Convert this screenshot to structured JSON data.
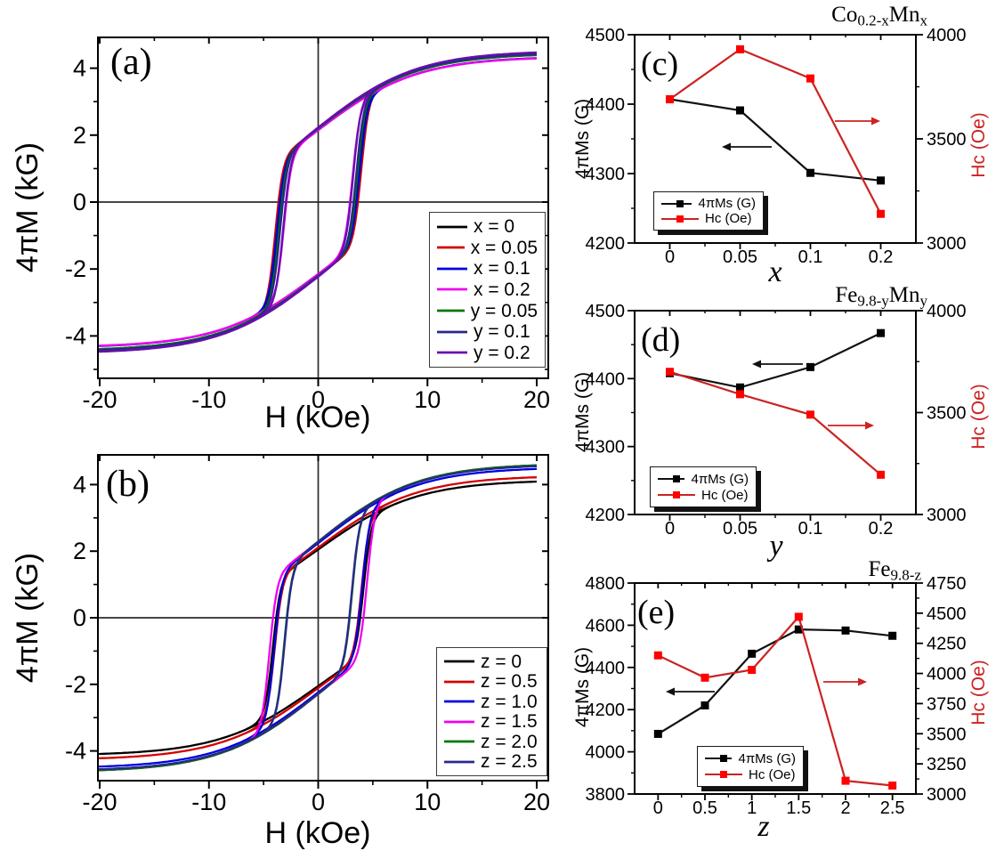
{
  "labels": {
    "a": {
      "letter": "(a)",
      "xlabel": "H (kOe)",
      "ylabel": "4πM (kG)"
    },
    "b": {
      "letter": "(b)",
      "xlabel": "H (kOe)",
      "ylabel": "4πM (kG)"
    },
    "c": {
      "letter": "(c)",
      "xlabel": "x",
      "ylabel_left": "4πMs (G)",
      "ylabel_right": "Hc (Oe)",
      "title": "Co0.2-xMnx",
      "title_segments": [
        {
          "text": "Co"
        },
        {
          "text": "0.2-x",
          "sub": true
        },
        {
          "text": "Mn"
        },
        {
          "text": "x",
          "sub": true
        }
      ]
    },
    "d": {
      "letter": "(d)",
      "xlabel": "y",
      "ylabel_left": "4πMs (G)",
      "ylabel_right": "Hc (Oe)",
      "title": "Fe9.8-yMny",
      "title_segments": [
        {
          "text": "Fe"
        },
        {
          "text": "9.8-y",
          "sub": true
        },
        {
          "text": "Mn"
        },
        {
          "text": "y",
          "sub": true
        }
      ]
    },
    "e": {
      "letter": "(e)",
      "xlabel": "z",
      "ylabel_left": "4πMs (G)",
      "ylabel_right": "Hc (Oe)",
      "title": "Fe9.8-z",
      "title_segments": [
        {
          "text": "Fe"
        },
        {
          "text": "9.8-z",
          "sub": true
        }
      ]
    }
  },
  "colors": {
    "accent_red": "#cc2222",
    "marker_red": "#ff0000",
    "marker_black": "#000000",
    "axis": "#000000",
    "zero_line": "#2b2b2b"
  },
  "chart_data": {
    "panel_a": {
      "type": "line",
      "subtype": "hysteresis_loops",
      "xlabel": "H (kOe)",
      "ylabel": "4πM (kG)",
      "xlim": [
        -20.2,
        21.1
      ],
      "ylim": [
        -5.3,
        4.9
      ],
      "xticks": [
        -20,
        -10,
        0,
        10,
        20
      ],
      "yticks": [
        -4,
        -2,
        0,
        2,
        4
      ],
      "legend_position": "lower right",
      "grid": false,
      "series": [
        {
          "name": "x = 0",
          "color": "#000000",
          "saturation_4piM_kG": 4.41,
          "remanence_4piM_kG": 2.2,
          "coercivity_kOe": 3.69
        },
        {
          "name": "x = 0.05",
          "color": "#d40000",
          "saturation_4piM_kG": 4.39,
          "remanence_4piM_kG": 2.2,
          "coercivity_kOe": 3.93
        },
        {
          "name": "x = 0.1",
          "color": "#0000dd",
          "saturation_4piM_kG": 4.3,
          "remanence_4piM_kG": 2.15,
          "coercivity_kOe": 3.79
        },
        {
          "name": "x = 0.2",
          "color": "#ee00ee",
          "saturation_4piM_kG": 4.29,
          "remanence_4piM_kG": 2.15,
          "coercivity_kOe": 3.14
        },
        {
          "name": "y = 0.05",
          "color": "#007700",
          "saturation_4piM_kG": 4.39,
          "remanence_4piM_kG": 2.2,
          "coercivity_kOe": 3.59
        },
        {
          "name": "y = 0.1",
          "color": "#28288c",
          "saturation_4piM_kG": 4.42,
          "remanence_4piM_kG": 2.21,
          "coercivity_kOe": 3.49
        },
        {
          "name": "y = 0.2",
          "color": "#6a0dad",
          "saturation_4piM_kG": 4.47,
          "remanence_4piM_kG": 2.23,
          "coercivity_kOe": 3.2
        }
      ]
    },
    "panel_b": {
      "type": "line",
      "subtype": "hysteresis_loops",
      "xlabel": "H (kOe)",
      "ylabel": "4πM (kG)",
      "xlim": [
        -20.2,
        21.1
      ],
      "ylim": [
        -4.9,
        4.9
      ],
      "xticks": [
        -20,
        -10,
        0,
        10,
        20
      ],
      "yticks": [
        -4,
        -2,
        0,
        2,
        4
      ],
      "legend_position": "lower right",
      "grid": false,
      "series": [
        {
          "name": "z = 0",
          "color": "#000000",
          "saturation_4piM_kG": 4.09,
          "remanence_4piM_kG": 2.05,
          "coercivity_kOe": 4.15
        },
        {
          "name": "z = 0.5",
          "color": "#d40000",
          "saturation_4piM_kG": 4.22,
          "remanence_4piM_kG": 2.11,
          "coercivity_kOe": 3.97
        },
        {
          "name": "z = 1.0",
          "color": "#0000dd",
          "saturation_4piM_kG": 4.47,
          "remanence_4piM_kG": 2.24,
          "coercivity_kOe": 4.03
        },
        {
          "name": "z = 1.5",
          "color": "#ee00ee",
          "saturation_4piM_kG": 4.58,
          "remanence_4piM_kG": 2.29,
          "coercivity_kOe": 4.47
        },
        {
          "name": "z = 2.0",
          "color": "#007700",
          "saturation_4piM_kG": 4.58,
          "remanence_4piM_kG": 2.29,
          "coercivity_kOe": 3.11
        },
        {
          "name": "z = 2.5",
          "color": "#28288c",
          "saturation_4piM_kG": 4.55,
          "remanence_4piM_kG": 2.28,
          "coercivity_kOe": 3.07
        }
      ]
    },
    "panel_c": {
      "type": "line",
      "markers": "square",
      "title": "Co0.2-xMnx",
      "xlabel": "x",
      "categories": [
        "0",
        "0.05",
        "0.1",
        "0.2"
      ],
      "left_axis": {
        "label": "4πMs (G)",
        "lim": [
          4200,
          4500
        ],
        "ticks": [
          4200,
          4300,
          4400,
          4500
        ]
      },
      "right_axis": {
        "label": "Hc (Oe)",
        "lim": [
          3000,
          4000
        ],
        "ticks": [
          3000,
          3500,
          4000
        ]
      },
      "legend": [
        "4πMs (G)",
        "Hc (Oe)"
      ],
      "legend_position": "lower left",
      "grid": false,
      "series": [
        {
          "name": "4πMs (G)",
          "axis": "left",
          "color": "#111111",
          "marker_color": "#000000",
          "values": [
            4407,
            4391,
            4301,
            4290
          ]
        },
        {
          "name": "Hc (Oe)",
          "axis": "right",
          "color": "#cc2222",
          "marker_color": "#ff0000",
          "values": [
            3690,
            3930,
            3790,
            3140
          ]
        }
      ]
    },
    "panel_d": {
      "type": "line",
      "markers": "square",
      "title": "Fe9.8-yMny",
      "xlabel": "y",
      "categories": [
        "0",
        "0.05",
        "0.1",
        "0.2"
      ],
      "left_axis": {
        "label": "4πMs (G)",
        "lim": [
          4200,
          4500
        ],
        "ticks": [
          4200,
          4300,
          4400,
          4500
        ]
      },
      "right_axis": {
        "label": "Hc (Oe)",
        "lim": [
          3000,
          4000
        ],
        "ticks": [
          3000,
          3500,
          4000
        ]
      },
      "legend": [
        "4πMs (G)",
        "Hc (Oe)"
      ],
      "legend_position": "lower left",
      "grid": false,
      "series": [
        {
          "name": "4πMs (G)",
          "axis": "left",
          "color": "#111111",
          "marker_color": "#000000",
          "values": [
            4408,
            4387,
            4417,
            4467
          ]
        },
        {
          "name": "Hc (Oe)",
          "axis": "right",
          "color": "#cc2222",
          "marker_color": "#ff0000",
          "values": [
            3700,
            3590,
            3490,
            3195
          ]
        }
      ]
    },
    "panel_e": {
      "type": "line",
      "markers": "square",
      "title": "Fe9.8-z",
      "xlabel": "z",
      "categories": [
        "0",
        "0.5",
        "1",
        "1.5",
        "2",
        "2.5"
      ],
      "left_axis": {
        "label": "4πMs (G)",
        "lim": [
          3800,
          4800
        ],
        "ticks": [
          3800,
          4000,
          4200,
          4400,
          4600,
          4800
        ]
      },
      "right_axis": {
        "label": "Hc (Oe)",
        "lim": [
          3000,
          4750
        ],
        "ticks": [
          3000,
          3250,
          3500,
          3750,
          4000,
          4250,
          4500,
          4750
        ]
      },
      "legend": [
        "4πMs (G)",
        "Hc (Oe)"
      ],
      "legend_position": "lower center",
      "grid": false,
      "series": [
        {
          "name": "4πMs (G)",
          "axis": "left",
          "color": "#111111",
          "marker_color": "#000000",
          "values": [
            4085,
            4220,
            4465,
            4580,
            4575,
            4550
          ]
        },
        {
          "name": "Hc (Oe)",
          "axis": "right",
          "color": "#cc2222",
          "marker_color": "#ff0000",
          "values": [
            4150,
            3965,
            4030,
            4470,
            3110,
            3070
          ]
        }
      ]
    }
  }
}
